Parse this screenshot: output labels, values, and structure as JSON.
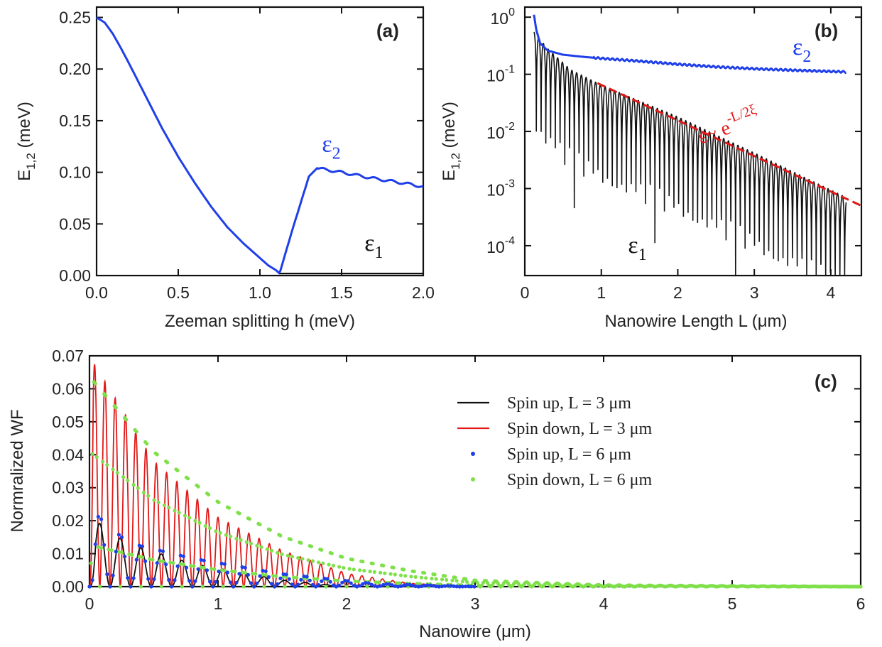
{
  "chart_data": [
    {
      "id": "a",
      "type": "line",
      "panel_label": "(a)",
      "xlabel": "Zeeman splitting h (meV)",
      "ylabel_main": "E",
      "ylabel_sub": "1,2",
      "ylabel_rest": " (meV)",
      "xlim": [
        0,
        2.0
      ],
      "ylim": [
        0,
        0.26
      ],
      "xticks": [
        0.0,
        0.5,
        1.0,
        1.5,
        2.0
      ],
      "xtick_labels": [
        "0.0",
        "0.5",
        "1.0",
        "1.5",
        "2.0"
      ],
      "yticks": [
        0.0,
        0.05,
        0.1,
        0.15,
        0.2,
        0.25
      ],
      "ytick_labels": [
        "0.00",
        "0.05",
        "0.10",
        "0.15",
        "0.20",
        "0.25"
      ],
      "series": [
        {
          "color": "#1f3fe8",
          "x": [
            0.0,
            0.05,
            0.1,
            0.15,
            0.2,
            0.3,
            0.4,
            0.5,
            0.6,
            0.7,
            0.8,
            0.9,
            1.0,
            1.05,
            1.1,
            1.12,
            1.2,
            1.3,
            1.35,
            1.5,
            1.7,
            1.9,
            2.0
          ],
          "y": [
            0.25,
            0.245,
            0.234,
            0.22,
            0.205,
            0.174,
            0.143,
            0.115,
            0.09,
            0.067,
            0.047,
            0.031,
            0.017,
            0.01,
            0.005,
            0.002,
            0.045,
            0.096,
            0.104,
            0.1,
            0.094,
            0.089,
            0.086
          ]
        },
        {
          "color": "#111111",
          "x": [
            1.12,
            1.5,
            2.0
          ],
          "y": [
            0.002,
            0.002,
            0.002
          ]
        }
      ],
      "annotations": [
        {
          "main": "ε",
          "sub": "2",
          "color": "#1f3fe8",
          "x": 1.38,
          "y": 0.12
        },
        {
          "main": "ε",
          "sub": "1",
          "color": "#111111",
          "x": 1.64,
          "y": 0.024
        }
      ]
    },
    {
      "id": "b",
      "type": "line",
      "panel_label": "(b)",
      "xlabel": "Nanowire Length L (μm)",
      "ylabel_main": "E",
      "ylabel_sub": "1,2",
      "ylabel_rest": " (meV)",
      "yscale": "log",
      "xlim": [
        0,
        4.4
      ],
      "ylim": [
        3e-05,
        1.5
      ],
      "xticks": [
        0,
        1,
        2,
        3,
        4
      ],
      "xtick_labels": [
        "0",
        "1",
        "2",
        "3",
        "4"
      ],
      "yticks": [
        0.0001,
        0.001,
        0.01,
        0.1,
        1
      ],
      "ytick_labels_base": [
        "10",
        "10",
        "10",
        "10",
        "10"
      ],
      "ytick_labels_exp": [
        "-4",
        "-3",
        "-2",
        "-1",
        "0"
      ],
      "epsilon2": {
        "color": "#1f3fe8",
        "x": [
          0.12,
          0.15,
          0.2,
          0.3,
          0.5,
          0.8,
          1.0,
          1.5,
          2.0,
          2.5,
          3.0,
          3.5,
          4.2
        ],
        "y": [
          1.1,
          0.6,
          0.35,
          0.26,
          0.22,
          0.2,
          0.19,
          0.17,
          0.15,
          0.135,
          0.125,
          0.118,
          0.11
        ]
      },
      "epsilon1": {
        "color": "#111111",
        "L_start": 0.12,
        "L_end": 4.2,
        "period": 0.062,
        "envelope_x": [
          0.12,
          0.3,
          0.6,
          1.0,
          2.0,
          3.0,
          4.2
        ],
        "envelope_y": [
          0.55,
          0.28,
          0.12,
          0.065,
          0.018,
          0.0042,
          0.0007
        ]
      },
      "fit": {
        "color": "#e11919",
        "x": [
          0.95,
          4.4
        ],
        "y": [
          0.07,
          0.0005
        ]
      },
      "annotations": [
        {
          "main": "ε",
          "sub": "2",
          "color": "#1f3fe8",
          "x": 3.5,
          "y": 0.22
        },
        {
          "main": "ε",
          "sub": "1",
          "color": "#111111",
          "x": 1.35,
          "y": 7.5e-05
        },
        {
          "main": "ε~ e",
          "sup": "-L/2ξ",
          "color": "#e11919",
          "x": 2.3,
          "y": 0.006,
          "rotate": -20
        }
      ]
    },
    {
      "id": "c",
      "type": "line",
      "panel_label": "(c)",
      "xlabel": "Nanowire (μm)",
      "ylabel": "Normralized WF",
      "xlim": [
        0,
        6
      ],
      "ylim": [
        0,
        0.07
      ],
      "xticks": [
        0,
        1,
        2,
        3,
        4,
        5,
        6
      ],
      "xtick_labels": [
        "0",
        "1",
        "2",
        "3",
        "4",
        "5",
        "6"
      ],
      "yticks": [
        0.0,
        0.01,
        0.02,
        0.03,
        0.04,
        0.05,
        0.06,
        0.07
      ],
      "ytick_labels": [
        "0.00",
        "0.01",
        "0.02",
        "0.03",
        "0.04",
        "0.05",
        "0.06",
        "0.07"
      ],
      "series": [
        {
          "name": "Spin up,      L = 3 μm",
          "style": "line",
          "color": "#111111",
          "period": 0.16,
          "envelope_x": [
            0.0,
            0.05,
            0.3,
            0.8,
            1.5,
            2.0
          ],
          "envelope_y": [
            0.0,
            0.02,
            0.013,
            0.007,
            0.002,
            0.0
          ]
        },
        {
          "name": "Spin down, L = 3 μm",
          "style": "line",
          "color": "#e11919",
          "period": 0.08,
          "envelope_x": [
            0.0,
            0.03,
            0.5,
            1.0,
            1.5,
            2.0,
            2.5,
            3.0
          ],
          "envelope_y": [
            0.0,
            0.068,
            0.038,
            0.021,
            0.011,
            0.004,
            0.001,
            0.0
          ]
        },
        {
          "name": "Spin up,      L = 6 μm",
          "style": "dots",
          "color": "#1f3fe8",
          "period": 0.16,
          "envelope_x": [
            0.0,
            0.05,
            0.3,
            0.8,
            1.5,
            2.2,
            3.0
          ],
          "envelope_y": [
            0.0,
            0.023,
            0.014,
            0.009,
            0.004,
            0.001,
            0.0
          ]
        },
        {
          "name": "Spin down, L = 6 μm",
          "style": "dots",
          "color": "#7fe04a",
          "period": 0.08,
          "envelope_x": [
            0.0,
            0.02,
            0.5,
            1.0,
            1.5,
            2.0,
            2.5,
            3.0,
            4.0,
            6.0
          ],
          "envelope_y": [
            0.0,
            0.066,
            0.043,
            0.027,
            0.016,
            0.009,
            0.005,
            0.002,
            0.0005,
            0.0
          ]
        }
      ],
      "legend_position": "upper-center-right"
    }
  ]
}
